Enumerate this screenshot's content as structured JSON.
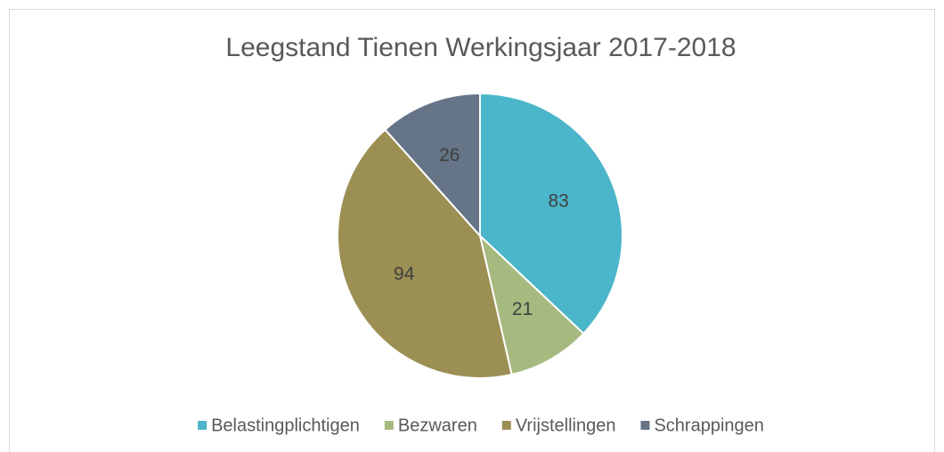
{
  "chart_data": {
    "type": "pie",
    "title": "Leegstand Tienen Werkingsjaar 2017-2018",
    "categories": [
      "Belastingplichtigen",
      "Bezwaren",
      "Vrijstellingen",
      "Schrappingen"
    ],
    "values": [
      83,
      21,
      94,
      26
    ],
    "colors": [
      "#4bb5c9",
      "#a6b97f",
      "#9b8f53",
      "#657587"
    ],
    "legend": "bottom"
  }
}
